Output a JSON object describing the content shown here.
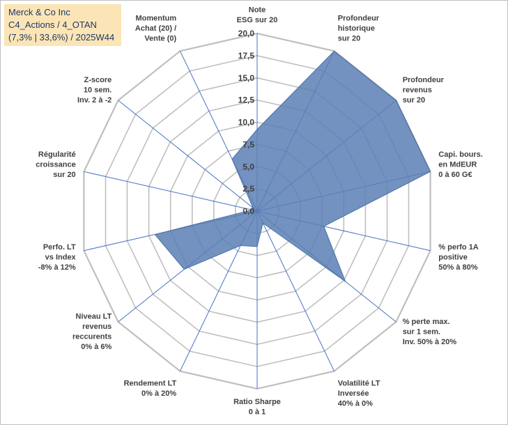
{
  "chart_data": {
    "type": "radar",
    "title_lines": [
      "Merck & Co Inc",
      "C4_Actions / 4_OTAN",
      "(7,3% | 33,6%) / 2025W44"
    ],
    "rlim": [
      0,
      20
    ],
    "ticks": [
      "0,0",
      "2,5",
      "5,0",
      "7,5",
      "10,0",
      "12,5",
      "15,0",
      "17,5",
      "20,0"
    ],
    "grid": true,
    "fill_color": "#5b7fb5",
    "grid_color": "#bfbfbf",
    "axis_color": "#4472c4",
    "axes": [
      {
        "label": [
          "Note",
          "ESG sur 20"
        ],
        "value": 9.2
      },
      {
        "label": [
          "Profondeur",
          "historique",
          "sur 20"
        ],
        "value": 20.0
      },
      {
        "label": [
          "Profondeur",
          "revenus",
          "sur 20"
        ],
        "value": 20.0
      },
      {
        "label": [
          "Capi. bours.",
          "en MdEUR",
          "0 à 60 G€"
        ],
        "value": 20.0
      },
      {
        "label": [
          "% perfo 1A",
          "positive",
          "50% à 80%"
        ],
        "value": 7.7
      },
      {
        "label": [
          "% perte max.",
          "sur 1 sem.",
          "Inv. 50% à 20%"
        ],
        "value": 12.7
      },
      {
        "label": [
          "Volatilité LT",
          "Inversée",
          "40% à 0%"
        ],
        "value": 1.5
      },
      {
        "label": [
          "Ratio Sharpe",
          "0 à 1"
        ],
        "value": 4.0
      },
      {
        "label": [
          "Rendement LT",
          "0% à 20%"
        ],
        "value": 4.3
      },
      {
        "label": [
          "Niveau LT",
          "revenus",
          "reccurents",
          "0% à 6%"
        ],
        "value": 10.5
      },
      {
        "label": [
          "Perfo. LT",
          "vs Index",
          "-8% à 12%"
        ],
        "value": 11.8
      },
      {
        "label": [
          "Régularité",
          "croissance",
          "sur 20"
        ],
        "value": 0.6
      },
      {
        "label": [
          "Z-score",
          "10 sem.",
          "Inv. 2 à -2"
        ],
        "value": 0.6
      },
      {
        "label": [
          "Momentum",
          "Achat (20) /",
          "Vente (0)"
        ],
        "value": 6.5
      }
    ]
  }
}
